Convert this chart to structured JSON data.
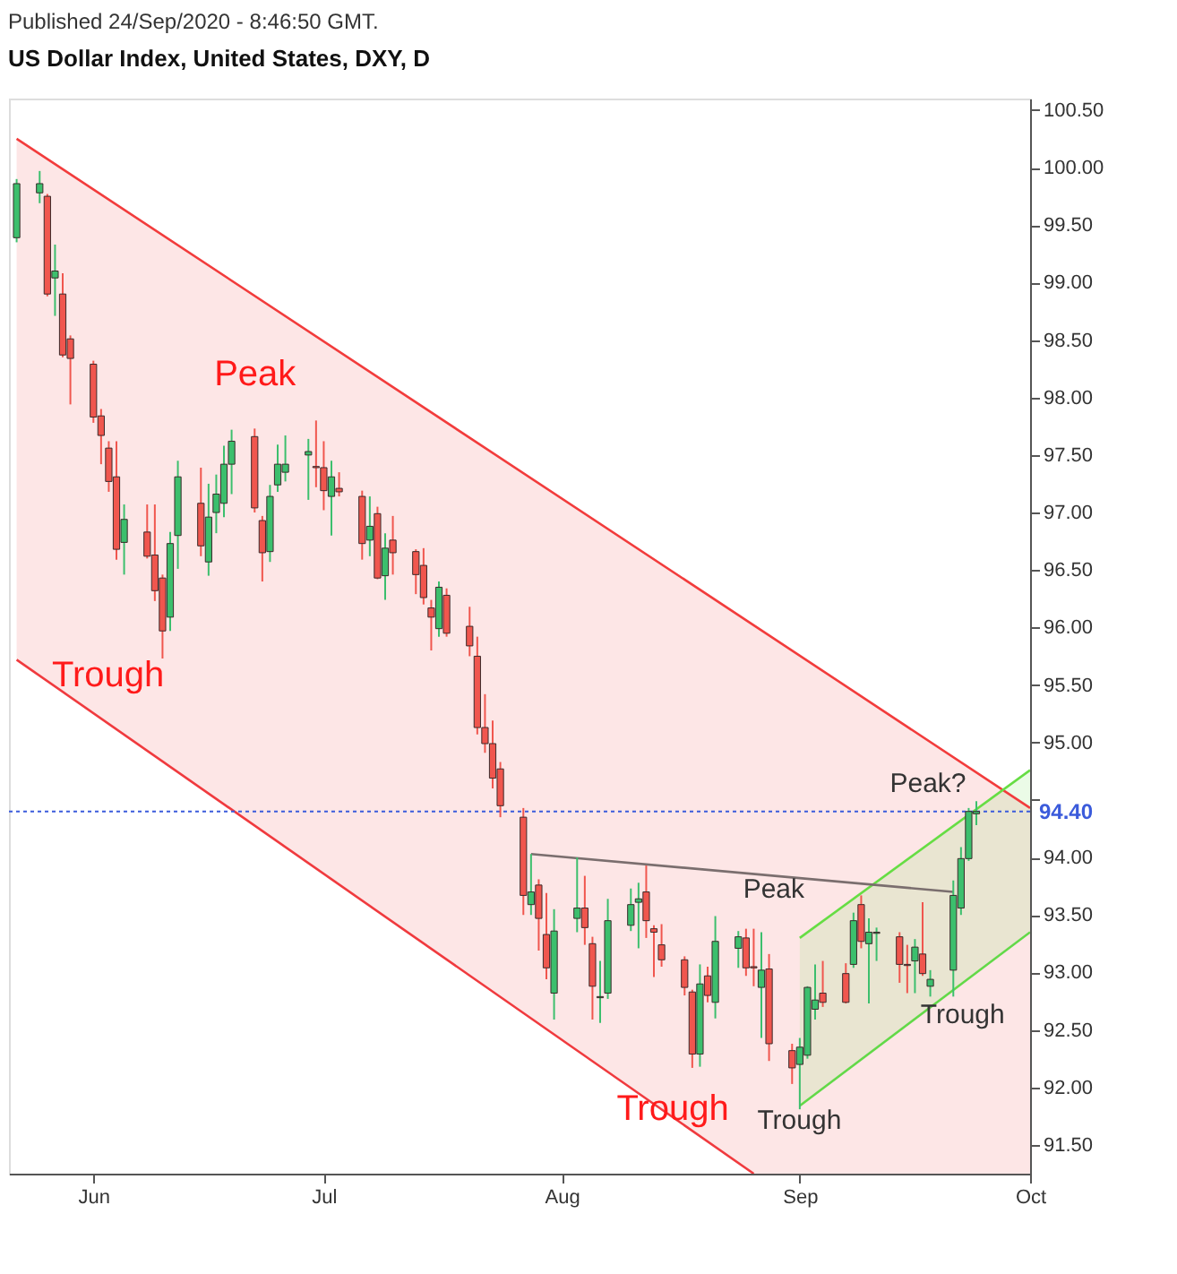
{
  "chart_data": {
    "type": "candlestick",
    "title": "US Dollar Index, United States, DXY, D",
    "subtitle": "Published 24/Sep/2020 - 8:46:50 GMT.",
    "x": [
      "2020-05-22",
      "2020-05-25",
      "2020-05-26",
      "2020-05-27",
      "2020-05-28",
      "2020-05-29",
      "2020-06-01",
      "2020-06-02",
      "2020-06-03",
      "2020-06-04",
      "2020-06-05",
      "2020-06-08",
      "2020-06-09",
      "2020-06-10",
      "2020-06-11",
      "2020-06-12",
      "2020-06-15",
      "2020-06-16",
      "2020-06-17",
      "2020-06-18",
      "2020-06-19",
      "2020-06-22",
      "2020-06-23",
      "2020-06-24",
      "2020-06-25",
      "2020-06-26",
      "2020-06-29",
      "2020-06-30",
      "2020-07-01",
      "2020-07-02",
      "2020-07-03",
      "2020-07-06",
      "2020-07-07",
      "2020-07-08",
      "2020-07-09",
      "2020-07-10",
      "2020-07-13",
      "2020-07-14",
      "2020-07-15",
      "2020-07-16",
      "2020-07-17",
      "2020-07-20",
      "2020-07-21",
      "2020-07-22",
      "2020-07-23",
      "2020-07-24",
      "2020-07-27",
      "2020-07-28",
      "2020-07-29",
      "2020-07-30",
      "2020-07-31",
      "2020-08-03",
      "2020-08-04",
      "2020-08-05",
      "2020-08-06",
      "2020-08-07",
      "2020-08-10",
      "2020-08-11",
      "2020-08-12",
      "2020-08-13",
      "2020-08-14",
      "2020-08-17",
      "2020-08-18",
      "2020-08-19",
      "2020-08-20",
      "2020-08-21",
      "2020-08-24",
      "2020-08-25",
      "2020-08-26",
      "2020-08-27",
      "2020-08-28",
      "2020-08-31",
      "2020-09-01",
      "2020-09-02",
      "2020-09-03",
      "2020-09-04",
      "2020-09-07",
      "2020-09-08",
      "2020-09-09",
      "2020-09-10",
      "2020-09-11",
      "2020-09-14",
      "2020-09-15",
      "2020-09-16",
      "2020-09-17",
      "2020-09-18",
      "2020-09-21",
      "2020-09-22",
      "2020-09-23",
      "2020-09-24"
    ],
    "ohlc": [
      [
        99.39,
        99.9,
        99.35,
        99.86
      ],
      [
        99.78,
        99.97,
        99.69,
        99.86
      ],
      [
        99.75,
        99.77,
        98.88,
        98.9
      ],
      [
        99.04,
        99.33,
        98.71,
        99.1
      ],
      [
        98.9,
        99.08,
        98.35,
        98.37
      ],
      [
        98.51,
        98.54,
        97.94,
        98.34
      ],
      [
        98.29,
        98.32,
        97.78,
        97.83
      ],
      [
        97.84,
        97.9,
        97.42,
        97.67
      ],
      [
        97.56,
        97.62,
        97.18,
        97.27
      ],
      [
        97.31,
        97.62,
        96.59,
        96.68
      ],
      [
        96.74,
        97.07,
        96.46,
        96.94
      ],
      [
        96.83,
        97.07,
        96.6,
        96.62
      ],
      [
        96.63,
        97.07,
        96.23,
        96.32
      ],
      [
        96.43,
        96.46,
        95.73,
        95.97
      ],
      [
        96.09,
        96.83,
        95.97,
        96.73
      ],
      [
        96.8,
        97.45,
        96.51,
        97.31
      ],
      [
        97.08,
        97.39,
        96.62,
        96.71
      ],
      [
        96.57,
        97.25,
        96.45,
        96.96
      ],
      [
        97.0,
        97.33,
        96.82,
        97.16
      ],
      [
        97.08,
        97.58,
        96.96,
        97.42
      ],
      [
        97.42,
        97.72,
        97.16,
        97.62
      ],
      [
        97.66,
        97.73,
        97.0,
        97.04
      ],
      [
        96.93,
        96.97,
        96.4,
        96.65
      ],
      [
        96.66,
        97.24,
        96.57,
        97.14
      ],
      [
        97.24,
        97.59,
        97.18,
        97.42
      ],
      [
        97.35,
        97.67,
        97.27,
        97.42
      ],
      [
        97.5,
        97.64,
        97.11,
        97.53
      ],
      [
        97.4,
        97.8,
        97.22,
        97.39
      ],
      [
        97.39,
        97.62,
        97.02,
        97.19
      ],
      [
        97.14,
        97.45,
        96.8,
        97.31
      ],
      [
        97.21,
        97.35,
        97.14,
        97.18
      ],
      [
        97.14,
        97.19,
        96.59,
        96.73
      ],
      [
        96.76,
        97.14,
        96.62,
        96.88
      ],
      [
        96.99,
        97.05,
        96.42,
        96.43
      ],
      [
        96.45,
        96.82,
        96.24,
        96.69
      ],
      [
        96.76,
        96.97,
        96.46,
        96.65
      ],
      [
        96.66,
        96.68,
        96.29,
        96.46
      ],
      [
        96.54,
        96.69,
        96.2,
        96.26
      ],
      [
        96.17,
        96.24,
        95.8,
        96.09
      ],
      [
        95.99,
        96.4,
        95.92,
        96.35
      ],
      [
        96.28,
        96.34,
        95.92,
        95.95
      ],
      [
        96.01,
        96.18,
        95.75,
        95.84
      ],
      [
        95.75,
        95.92,
        95.07,
        95.13
      ],
      [
        95.13,
        95.42,
        94.91,
        94.99
      ],
      [
        94.99,
        95.19,
        94.6,
        94.69
      ],
      [
        94.77,
        94.83,
        94.35,
        94.45
      ],
      [
        94.35,
        94.43,
        93.5,
        93.67
      ],
      [
        93.59,
        94.03,
        93.5,
        93.7
      ],
      [
        93.76,
        93.81,
        93.19,
        93.47
      ],
      [
        93.33,
        93.69,
        92.94,
        93.04
      ],
      [
        92.82,
        93.55,
        92.59,
        93.36
      ],
      [
        93.47,
        94.0,
        93.35,
        93.56
      ],
      [
        93.56,
        93.84,
        93.24,
        93.39
      ],
      [
        93.25,
        93.31,
        92.59,
        92.88
      ],
      [
        92.78,
        93.1,
        92.56,
        92.79
      ],
      [
        92.82,
        93.64,
        92.77,
        93.45
      ],
      [
        93.41,
        93.73,
        93.36,
        93.59
      ],
      [
        93.61,
        93.78,
        93.21,
        93.64
      ],
      [
        93.7,
        93.93,
        93.3,
        93.45
      ],
      [
        93.38,
        93.41,
        92.96,
        93.35
      ],
      [
        93.24,
        93.42,
        93.05,
        93.11
      ],
      [
        93.11,
        93.14,
        92.8,
        92.87
      ],
      [
        92.83,
        92.85,
        92.17,
        92.29
      ],
      [
        92.29,
        93.07,
        92.18,
        92.9
      ],
      [
        92.97,
        93.05,
        92.74,
        92.8
      ],
      [
        92.74,
        93.49,
        92.6,
        93.27
      ],
      [
        93.21,
        93.36,
        93.04,
        93.31
      ],
      [
        93.3,
        93.38,
        92.97,
        93.04
      ],
      [
        93.05,
        93.38,
        92.88,
        93.04
      ],
      [
        92.87,
        93.35,
        92.43,
        93.02
      ],
      [
        93.03,
        93.16,
        92.23,
        92.38
      ],
      [
        92.32,
        92.38,
        92.03,
        92.17
      ],
      [
        92.2,
        92.43,
        91.81,
        92.35
      ],
      [
        92.28,
        92.88,
        92.25,
        92.87
      ],
      [
        92.68,
        93.07,
        92.59,
        92.76
      ],
      [
        92.82,
        93.1,
        92.7,
        92.74
      ],
      [
        92.99,
        93.08,
        92.73,
        92.74
      ],
      [
        93.07,
        93.52,
        93.04,
        93.45
      ],
      [
        93.59,
        93.67,
        93.21,
        93.27
      ],
      [
        93.25,
        93.47,
        92.73,
        93.35
      ],
      [
        93.34,
        93.39,
        93.1,
        93.35
      ],
      [
        93.31,
        93.35,
        92.91,
        93.07
      ],
      [
        93.07,
        93.24,
        92.82,
        93.06
      ],
      [
        93.1,
        93.29,
        92.82,
        93.22
      ],
      [
        93.16,
        93.61,
        92.97,
        92.99
      ],
      [
        92.88,
        93.02,
        92.79,
        92.94
      ],
      [
        93.02,
        93.8,
        92.79,
        93.67
      ],
      [
        93.56,
        94.09,
        93.5,
        93.99
      ],
      [
        93.99,
        94.43,
        93.97,
        94.4
      ],
      [
        94.38,
        94.49,
        94.28,
        94.4
      ]
    ],
    "colors": [
      "#3cbf6d",
      "#3cbf6d",
      "#f0564e",
      "#3cbf6d",
      "#f0564e",
      "#f0564e",
      "#f0564e",
      "#f0564e",
      "#f0564e",
      "#f0564e",
      "#3cbf6d",
      "#f0564e",
      "#f0564e",
      "#f0564e",
      "#3cbf6d",
      "#3cbf6d",
      "#f0564e",
      "#3cbf6d",
      "#3cbf6d",
      "#3cbf6d",
      "#3cbf6d",
      "#f0564e",
      "#f0564e",
      "#3cbf6d",
      "#3cbf6d",
      "#3cbf6d",
      "#3cbf6d",
      "#f0564e",
      "#f0564e",
      "#3cbf6d",
      "#f0564e",
      "#f0564e",
      "#3cbf6d",
      "#f0564e",
      "#3cbf6d",
      "#f0564e",
      "#f0564e",
      "#f0564e",
      "#f0564e",
      "#3cbf6d",
      "#f0564e",
      "#f0564e",
      "#f0564e",
      "#f0564e",
      "#f0564e",
      "#f0564e",
      "#f0564e",
      "#3cbf6d",
      "#f0564e",
      "#f0564e",
      "#3cbf6d",
      "#3cbf6d",
      "#f0564e",
      "#f0564e",
      "#3cbf6d",
      "#3cbf6d",
      "#3cbf6d",
      "#3cbf6d",
      "#f0564e",
      "#f0564e",
      "#f0564e",
      "#f0564e",
      "#f0564e",
      "#3cbf6d",
      "#f0564e",
      "#3cbf6d",
      "#3cbf6d",
      "#f0564e",
      "#f0564e",
      "#3cbf6d",
      "#f0564e",
      "#f0564e",
      "#3cbf6d",
      "#3cbf6d",
      "#3cbf6d",
      "#f0564e",
      "#f0564e",
      "#3cbf6d",
      "#f0564e",
      "#3cbf6d",
      "#3cbf6d",
      "#f0564e",
      "#f0564e",
      "#3cbf6d",
      "#f0564e",
      "#3cbf6d",
      "#3cbf6d",
      "#3cbf6d",
      "#3cbf6d",
      "#3cbf6d"
    ],
    "series": [
      {
        "type": "line",
        "color": "#f23c3c",
        "x": [
          "2020-05-22",
          "2020-08-26",
          "2020-10-01"
        ],
        "values": [
          100.25,
          96.02,
          94.43
        ],
        "lower": [
          95.72,
          91.25,
          91.25
        ],
        "upper": [
          100.25,
          96.02,
          94.43
        ]
      },
      {
        "type": "line",
        "color": "#f03a3e",
        "x": [
          "2020-05-22",
          "2020-08-26"
        ],
        "values": [
          95.72,
          91.25
        ]
      },
      {
        "type": "line",
        "color": "#66dd44",
        "x": [
          "2020-09-01",
          "2020-10-01"
        ],
        "values": [
          93.3,
          94.76
        ],
        "lower": [
          91.84,
          93.35
        ],
        "upper": [
          93.3,
          94.76
        ]
      },
      {
        "type": "line",
        "color": "#62d948",
        "x": [
          "2020-09-01",
          "2020-10-01"
        ],
        "values": [
          91.84,
          93.35
        ]
      },
      {
        "type": "line",
        "color": "#7a6e6e",
        "x": [
          "2020-07-28",
          "2020-09-21"
        ],
        "values": [
          94.03,
          93.7
        ]
      }
    ],
    "ref_lines": [
      {
        "axis": "y",
        "value": 94.4,
        "label": "94.40",
        "color": "#3b5bdb",
        "line_style": "dotted"
      }
    ],
    "annotations": [
      "Peak",
      "Trough",
      "Trough",
      "Peak",
      "Trough",
      "Trough",
      "Peak?"
    ],
    "xlim": [
      "2020-05-21",
      "2020-10-01"
    ],
    "xticks": [
      {
        "value": "2020-06-01",
        "label": "Jun"
      },
      {
        "value": "2020-07-01",
        "label": "Jul"
      },
      {
        "value": "2020-08-01",
        "label": "Aug"
      },
      {
        "value": "2020-09-01",
        "label": "Sep"
      },
      {
        "value": "2020-10-01",
        "label": "Oct"
      }
    ],
    "ylim": [
      91.25,
      100.6
    ],
    "yticks": [
      {
        "value": 91.5,
        "label": "91.50"
      },
      {
        "value": 92,
        "label": "92.00"
      },
      {
        "value": 92.5,
        "label": "92.50"
      },
      {
        "value": 93,
        "label": "93.00"
      },
      {
        "value": 93.5,
        "label": "93.50"
      },
      {
        "value": 94,
        "label": "94.00"
      },
      {
        "value": 94.5,
        "label": null
      },
      {
        "value": 95,
        "label": "95.00"
      },
      {
        "value": 95.5,
        "label": "95.50"
      },
      {
        "value": 96,
        "label": "96.00"
      },
      {
        "value": 96.5,
        "label": "96.50"
      },
      {
        "value": 97,
        "label": "97.00"
      },
      {
        "value": 97.5,
        "label": "97.50"
      },
      {
        "value": 98,
        "label": "98.00"
      },
      {
        "value": 98.5,
        "label": "98.50"
      },
      {
        "value": 99,
        "label": "99.00"
      },
      {
        "value": 99.5,
        "label": "99.50"
      },
      {
        "value": 100,
        "label": "100.00"
      },
      {
        "value": 100.5,
        "label": "100.50"
      }
    ]
  }
}
